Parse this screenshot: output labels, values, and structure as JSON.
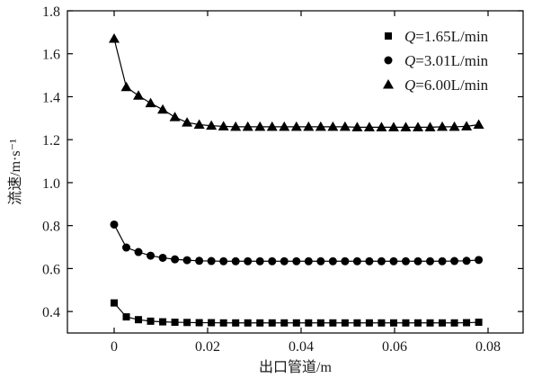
{
  "chart_data": {
    "type": "line",
    "xlabel": "出口管道/m",
    "ylabel": "流速/m·s⁻¹",
    "xlim": [
      -0.01,
      0.0875
    ],
    "ylim": [
      0.3,
      1.8
    ],
    "x_ticks": [
      0,
      0.02,
      0.04,
      0.06,
      0.08
    ],
    "x_tick_labels": [
      "0",
      "0.02",
      "0.04",
      "0.06",
      "0.08"
    ],
    "y_ticks": [
      0.4,
      0.6,
      0.8,
      1.0,
      1.2,
      1.4,
      1.6,
      1.8
    ],
    "y_tick_labels": [
      "0.4",
      "0.6",
      "0.8",
      "1.0",
      "1.2",
      "1.4",
      "1.6",
      "1.8"
    ],
    "legend_position": "top-right",
    "x": [
      0,
      0.0026,
      0.0052,
      0.0078,
      0.0104,
      0.013,
      0.0156,
      0.0182,
      0.0208,
      0.0234,
      0.026,
      0.0286,
      0.0312,
      0.0338,
      0.0364,
      0.039,
      0.0416,
      0.0442,
      0.0468,
      0.0494,
      0.052,
      0.0546,
      0.0572,
      0.0598,
      0.0624,
      0.065,
      0.0676,
      0.0702,
      0.0728,
      0.0754,
      0.078
    ],
    "series": [
      {
        "name": "Q=1.65L/min",
        "name_italic": "Q",
        "name_rest": "=1.65L/min",
        "marker": "square",
        "values": [
          0.44,
          0.375,
          0.362,
          0.355,
          0.352,
          0.35,
          0.349,
          0.348,
          0.348,
          0.347,
          0.347,
          0.347,
          0.347,
          0.347,
          0.347,
          0.347,
          0.347,
          0.347,
          0.347,
          0.347,
          0.347,
          0.347,
          0.347,
          0.347,
          0.347,
          0.347,
          0.347,
          0.347,
          0.347,
          0.348,
          0.35
        ]
      },
      {
        "name": "Q=3.01L/min",
        "name_italic": "Q",
        "name_rest": "=3.01L/min",
        "marker": "circle",
        "values": [
          0.805,
          0.698,
          0.677,
          0.66,
          0.65,
          0.643,
          0.639,
          0.636,
          0.635,
          0.634,
          0.634,
          0.634,
          0.634,
          0.634,
          0.634,
          0.634,
          0.634,
          0.634,
          0.634,
          0.634,
          0.634,
          0.634,
          0.634,
          0.634,
          0.634,
          0.634,
          0.634,
          0.634,
          0.635,
          0.636,
          0.64
        ]
      },
      {
        "name": "Q=6.00L/min",
        "name_italic": "Q",
        "name_rest": "=6.00L/min",
        "marker": "triangle",
        "values": [
          1.67,
          1.445,
          1.405,
          1.37,
          1.34,
          1.305,
          1.28,
          1.27,
          1.265,
          1.262,
          1.26,
          1.26,
          1.26,
          1.26,
          1.26,
          1.26,
          1.26,
          1.26,
          1.26,
          1.26,
          1.258,
          1.258,
          1.258,
          1.258,
          1.258,
          1.258,
          1.258,
          1.26,
          1.26,
          1.262,
          1.27
        ]
      }
    ]
  }
}
